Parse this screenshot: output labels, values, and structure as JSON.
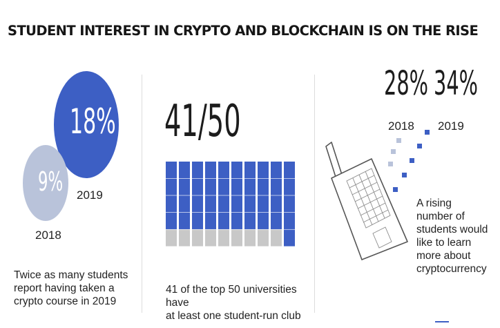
{
  "title": "STUDENT INTEREST IN CRYPTO AND BLOCKCHAIN IS ON THE RISE",
  "panels": {
    "courses": {
      "value_2019": "18%",
      "value_2018": "9%",
      "label_2019": "2019",
      "label_2018": "2018",
      "caption_lines": [
        "Twice as many students",
        "report having taken a",
        "crypto course in 2019"
      ]
    },
    "clubs": {
      "fraction": "41/50",
      "caption_lines": [
        "41 of the top 50 universities have",
        "at least one student-run club"
      ]
    },
    "interest": {
      "value_2018": "28%",
      "value_2019": "34%",
      "label_2018": "2018",
      "label_2019": "2019",
      "caption_lines": [
        "A rising",
        "number of",
        "students would",
        "like to learn",
        "more about",
        "cryptocurrency"
      ]
    }
  },
  "colors": {
    "accent": "#3d5fc4",
    "light_blue": "#b9c3da",
    "grey": "#c8c8c8"
  },
  "chart_data": [
    {
      "type": "bar",
      "categories": [
        "2018",
        "2019"
      ],
      "values": [
        9,
        18
      ],
      "unit": "%"
    },
    {
      "type": "table",
      "filled": 41,
      "total": 50
    },
    {
      "type": "bar",
      "categories": [
        "2018",
        "2019"
      ],
      "values": [
        28,
        34
      ],
      "unit": "%"
    }
  ]
}
